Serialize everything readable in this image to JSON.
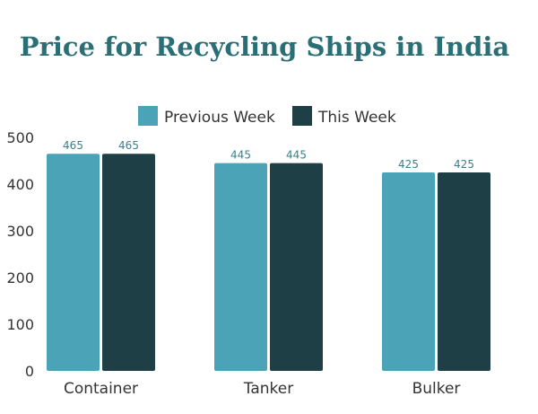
{
  "chart_data": {
    "type": "bar",
    "title": "Price for Recycling Ships in India",
    "categories": [
      "Container",
      "Tanker",
      "Bulker"
    ],
    "series": [
      {
        "name": "Previous Week",
        "values": [
          465,
          445,
          425
        ],
        "color": "#4ba3b8"
      },
      {
        "name": "This Week",
        "values": [
          465,
          445,
          425
        ],
        "color": "#1e3f46"
      }
    ],
    "ylim": [
      0,
      500
    ],
    "yticks": [
      0,
      100,
      200,
      300,
      400,
      500
    ],
    "legend_position": "top-center",
    "grid": false
  }
}
